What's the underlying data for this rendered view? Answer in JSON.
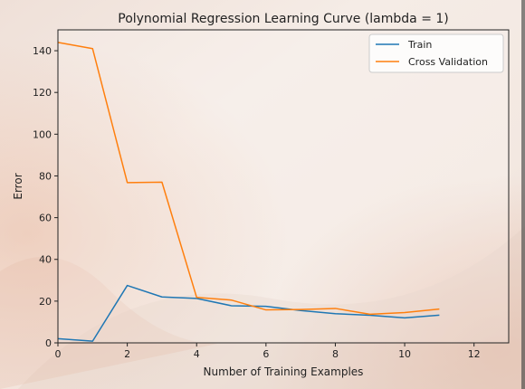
{
  "chart_data": {
    "type": "line",
    "title": "Polynomial Regression Learning Curve (lambda = 1)",
    "xlabel": "Number of Training Examples",
    "ylabel": "Error",
    "xlim": [
      0,
      13
    ],
    "ylim": [
      0,
      150
    ],
    "xticks": [
      0,
      2,
      4,
      6,
      8,
      10,
      12
    ],
    "yticks": [
      0,
      20,
      40,
      60,
      80,
      100,
      120,
      140
    ],
    "legend_position": "top-right",
    "grid": false,
    "x": [
      0,
      1,
      2,
      3,
      4,
      5,
      6,
      7,
      8,
      9,
      10,
      11
    ],
    "series": [
      {
        "name": "Train",
        "color": "#1f77b4",
        "values": [
          2.0,
          0.8,
          27.5,
          22.0,
          21.3,
          17.8,
          17.5,
          15.5,
          14.0,
          13.2,
          12.0,
          13.3
        ]
      },
      {
        "name": "Cross Validation",
        "color": "#ff7f0e",
        "values": [
          144.0,
          141.0,
          76.8,
          77.0,
          21.8,
          20.5,
          15.8,
          16.0,
          16.5,
          13.7,
          14.5,
          16.2
        ]
      }
    ]
  }
}
